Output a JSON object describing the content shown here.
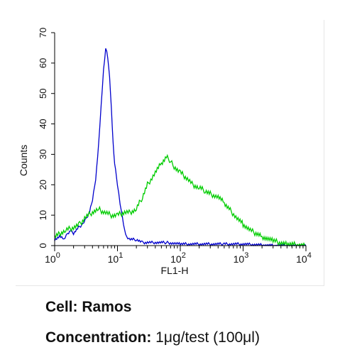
{
  "chart_data": {
    "type": "line",
    "title": "",
    "xlabel": "FL1-H",
    "ylabel": "Counts",
    "xscale": "log",
    "xlim": [
      1,
      10000
    ],
    "ylim": [
      0,
      70
    ],
    "xtick_labels": [
      {
        "base": "10",
        "exp": "0"
      },
      {
        "base": "10",
        "exp": "1"
      },
      {
        "base": "10",
        "exp": "2"
      },
      {
        "base": "10",
        "exp": "3"
      },
      {
        "base": "10",
        "exp": "4"
      }
    ],
    "xticks": [
      1,
      10,
      100,
      1000,
      10000
    ],
    "yticks": [
      0,
      10,
      20,
      30,
      40,
      50,
      60,
      70
    ],
    "grid": false,
    "legend": "none",
    "series": [
      {
        "color": "#0000cc",
        "x": [
          1.0,
          1.2,
          1.4,
          1.6,
          1.8,
          2.0,
          2.4,
          2.8,
          3.2,
          3.6,
          4.0,
          4.5,
          5.0,
          5.5,
          6.0,
          6.5,
          7.0,
          7.5,
          8.0,
          8.5,
          9.0,
          10.0,
          11.0,
          12.0,
          13.0,
          14.0,
          16.0,
          20.0,
          25.0,
          30.0,
          40.0,
          60.0,
          100.0,
          200.0,
          500.0,
          1000.0,
          3000.0,
          10000.0
        ],
        "y": [
          2,
          3,
          2,
          4,
          5,
          4,
          6,
          7,
          9,
          11,
          15,
          22,
          33,
          46,
          58,
          65,
          62,
          55,
          45,
          34,
          27,
          20,
          14,
          9,
          5,
          3,
          2,
          2,
          1,
          1,
          1,
          1,
          0.5,
          0.5,
          0.5,
          0.5,
          0,
          0
        ]
      },
      {
        "color": "#00cc00",
        "x": [
          1.0,
          1.2,
          1.5,
          2.0,
          2.5,
          3.0,
          4.0,
          5.0,
          6.0,
          8.0,
          10.0,
          13.0,
          16.0,
          20.0,
          25.0,
          30.0,
          40.0,
          50.0,
          60.0,
          70.0,
          80.0,
          100.0,
          130.0,
          160.0,
          200.0,
          250.0,
          300.0,
          400.0,
          500.0,
          600.0,
          800.0,
          1000.0,
          1300.0,
          1600.0,
          2000.0,
          3000.0,
          5000.0,
          10000.0
        ],
        "y": [
          3,
          4,
          5,
          6,
          7,
          9,
          11,
          12,
          11,
          10,
          10,
          11,
          11,
          12,
          16,
          20,
          24,
          27,
          29,
          28,
          26,
          24,
          22,
          20,
          19,
          18,
          17,
          16,
          14,
          12,
          9,
          7,
          5,
          4,
          3,
          1.5,
          0.5,
          0
        ]
      }
    ]
  },
  "caption": {
    "cell_label": "Cell:",
    "cell_value": "Ramos",
    "concentration_label": "Concentration:",
    "concentration_value": "1μg/test (100μl)"
  }
}
